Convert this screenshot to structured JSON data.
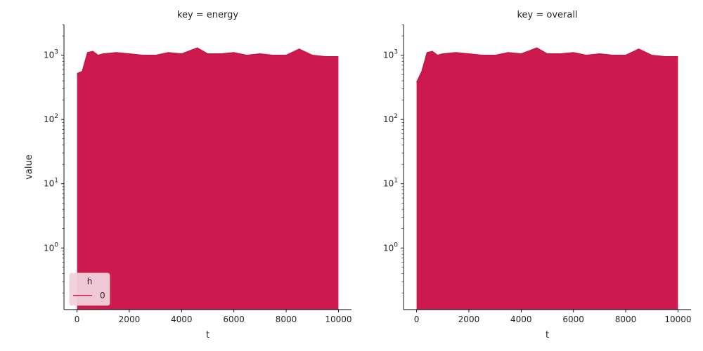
{
  "chart_data": {
    "type": "area",
    "scale_y": "log",
    "x_range": [
      0,
      10000
    ],
    "y_range": [
      0.11,
      3000
    ],
    "x_ticks": [
      0,
      2000,
      4000,
      6000,
      8000,
      10000
    ],
    "x_tick_labels": [
      "0",
      "2000",
      "4000",
      "6000",
      "8000",
      "10000"
    ],
    "y_ticks": [
      1,
      10,
      100,
      1000
    ],
    "y_tick_labels": [
      "10",
      "10",
      "10",
      "10"
    ],
    "y_tick_exponents": [
      "0",
      "1",
      "2",
      "3"
    ],
    "grid": false,
    "xlabel": "t",
    "ylabel": "value",
    "fill_color": "#cc1a4e",
    "line_color": "#c2144a",
    "legend": {
      "title": "h",
      "entries": [
        "0"
      ],
      "placement": "lower-left"
    },
    "panels": [
      {
        "title": "key = energy",
        "series": [
          {
            "name": "0",
            "x": [
              0,
              200,
              400,
              600,
              800,
              1000,
              1500,
              2000,
              2500,
              3000,
              3500,
              4000,
              4600,
              5000,
              5500,
              6000,
              6500,
              7000,
              7500,
              8000,
              8500,
              9000,
              9500,
              10000
            ],
            "values": [
              520,
              560,
              1100,
              1150,
              1000,
              1050,
              1100,
              1050,
              1000,
              1000,
              1100,
              1050,
              1300,
              1050,
              1050,
              1100,
              1000,
              1050,
              1000,
              1000,
              1250,
              1000,
              950,
              950
            ]
          }
        ]
      },
      {
        "title": "key = overall",
        "series": [
          {
            "name": "0",
            "x": [
              0,
              200,
              400,
              600,
              800,
              1000,
              1500,
              2000,
              2500,
              3000,
              3500,
              4000,
              4600,
              5000,
              5500,
              6000,
              6500,
              7000,
              7500,
              8000,
              8500,
              9000,
              9500,
              10000
            ],
            "values": [
              380,
              560,
              1100,
              1150,
              1000,
              1050,
              1100,
              1050,
              1000,
              1000,
              1100,
              1050,
              1300,
              1050,
              1050,
              1100,
              1000,
              1050,
              1000,
              1000,
              1250,
              1000,
              950,
              950
            ]
          }
        ]
      }
    ]
  }
}
